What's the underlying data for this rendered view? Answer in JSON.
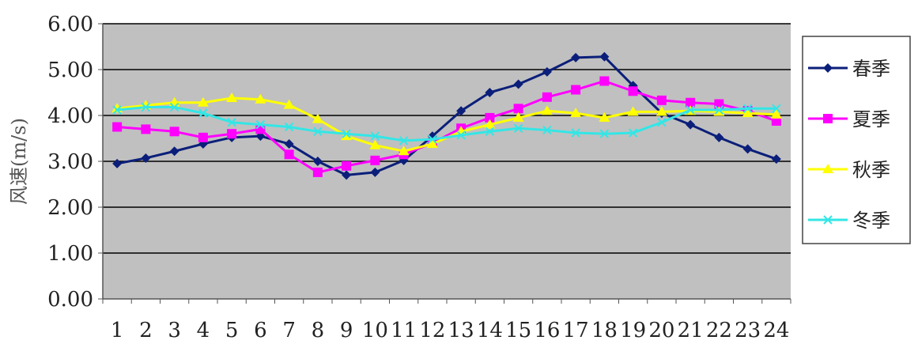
{
  "chart_data": {
    "type": "line",
    "title": "",
    "xlabel": "",
    "ylabel": "风速(m/s)",
    "ylim": [
      0,
      6
    ],
    "yticks": [
      "0.00",
      "1.00",
      "2.00",
      "3.00",
      "4.00",
      "5.00",
      "6.00"
    ],
    "categories": [
      "1",
      "2",
      "3",
      "4",
      "5",
      "6",
      "7",
      "8",
      "9",
      "10",
      "11",
      "12",
      "13",
      "14",
      "15",
      "16",
      "17",
      "18",
      "19",
      "20",
      "21",
      "22",
      "23",
      "24"
    ],
    "grid": true,
    "legend_position": "right",
    "plot_background": "#c0c0c0",
    "series": [
      {
        "name": "春季",
        "color": "#0b1f7a",
        "marker": "diamond",
        "values": [
          2.95,
          3.07,
          3.22,
          3.38,
          3.52,
          3.55,
          3.38,
          3.0,
          2.7,
          2.76,
          3.02,
          3.55,
          4.1,
          4.5,
          4.68,
          4.95,
          5.26,
          5.28,
          4.65,
          4.05,
          3.8,
          3.52,
          3.27,
          3.05
        ]
      },
      {
        "name": "夏季",
        "color": "#ff00ff",
        "marker": "square",
        "values": [
          3.75,
          3.7,
          3.65,
          3.52,
          3.6,
          3.7,
          3.15,
          2.76,
          2.9,
          3.02,
          3.15,
          3.4,
          3.72,
          3.95,
          4.15,
          4.4,
          4.56,
          4.75,
          4.53,
          4.33,
          4.28,
          4.25,
          4.1,
          3.88
        ]
      },
      {
        "name": "秋季",
        "color": "#ffff00",
        "marker": "triangle",
        "values": [
          4.15,
          4.22,
          4.28,
          4.28,
          4.38,
          4.35,
          4.23,
          3.92,
          3.55,
          3.35,
          3.22,
          3.38,
          3.65,
          3.8,
          3.95,
          4.1,
          4.05,
          3.95,
          4.08,
          4.08,
          4.1,
          4.08,
          4.05,
          4.02
        ]
      },
      {
        "name": "冬季",
        "color": "#33e6e6",
        "marker": "x",
        "values": [
          4.12,
          4.18,
          4.18,
          4.05,
          3.85,
          3.8,
          3.75,
          3.65,
          3.6,
          3.55,
          3.45,
          3.48,
          3.57,
          3.65,
          3.72,
          3.68,
          3.62,
          3.6,
          3.62,
          3.85,
          4.12,
          4.12,
          4.15,
          4.15
        ]
      }
    ]
  }
}
